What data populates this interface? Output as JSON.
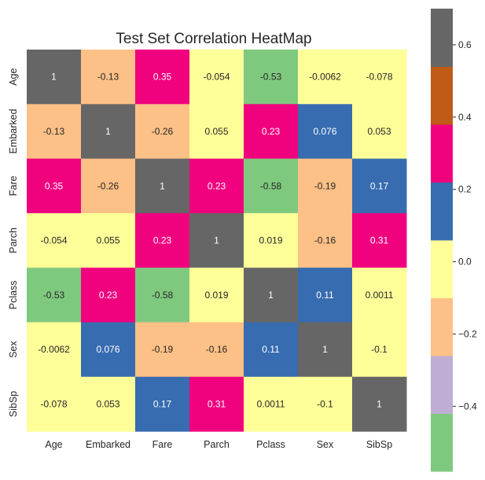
{
  "chart_data": {
    "type": "heatmap",
    "title": "Test Set Correlation HeatMap",
    "xlabel": "",
    "ylabel": "",
    "columns": [
      "Age",
      "Embarked",
      "Fare",
      "Parch",
      "Pclass",
      "Sex",
      "SibSp"
    ],
    "rows": [
      "Age",
      "Embarked",
      "Fare",
      "Parch",
      "Pclass",
      "Sex",
      "SibSp"
    ],
    "values": [
      [
        1,
        -0.13,
        0.35,
        -0.054,
        -0.53,
        -0.0062,
        -0.078
      ],
      [
        -0.13,
        1,
        -0.26,
        0.055,
        0.23,
        0.076,
        0.053
      ],
      [
        0.35,
        -0.26,
        1,
        0.23,
        -0.58,
        -0.19,
        0.17
      ],
      [
        -0.054,
        0.055,
        0.23,
        1,
        0.019,
        -0.16,
        0.31
      ],
      [
        -0.53,
        0.23,
        -0.58,
        0.019,
        1,
        0.11,
        0.0011
      ],
      [
        -0.0062,
        0.076,
        -0.19,
        -0.16,
        0.11,
        1,
        -0.1
      ],
      [
        -0.078,
        0.053,
        0.17,
        0.31,
        0.0011,
        -0.1,
        1
      ]
    ],
    "value_labels": [
      [
        "1",
        "-0.13",
        "0.35",
        "-0.054",
        "-0.53",
        "-0.0062",
        "-0.078"
      ],
      [
        "-0.13",
        "1",
        "-0.26",
        "0.055",
        "0.23",
        "0.076",
        "0.053"
      ],
      [
        "0.35",
        "-0.26",
        "1",
        "0.23",
        "-0.58",
        "-0.19",
        "0.17"
      ],
      [
        "-0.054",
        "0.055",
        "0.23",
        "1",
        "0.019",
        "-0.16",
        "0.31"
      ],
      [
        "-0.53",
        "0.23",
        "-0.58",
        "0.019",
        "1",
        "0.11",
        "0.0011"
      ],
      [
        "-0.0062",
        "0.076",
        "-0.19",
        "-0.16",
        "0.11",
        "1",
        "-0.1"
      ],
      [
        "-0.078",
        "0.053",
        "0.17",
        "0.31",
        "0.0011",
        "-0.1",
        "1"
      ]
    ],
    "colormap": "Accent",
    "vmin": -0.58,
    "vmax": 0.7,
    "color_bins": [
      {
        "from": -0.58,
        "to": -0.42,
        "color": "#7fc97f"
      },
      {
        "from": -0.42,
        "to": -0.26,
        "color": "#beaed4"
      },
      {
        "from": -0.26,
        "to": -0.1,
        "color": "#fdc086"
      },
      {
        "from": -0.1,
        "to": 0.06,
        "color": "#ffff99"
      },
      {
        "from": 0.06,
        "to": 0.22,
        "color": "#386cb0"
      },
      {
        "from": 0.22,
        "to": 0.38,
        "color": "#f0027f"
      },
      {
        "from": 0.38,
        "to": 0.54,
        "color": "#bf5b17"
      },
      {
        "from": 0.54,
        "to": 0.7,
        "color": "#666666"
      }
    ],
    "colorbar_ticks": [
      "0.6",
      "0.4",
      "0.2",
      "0.0",
      "−0.2",
      "−0.4"
    ],
    "colorbar_tick_values": [
      0.6,
      0.4,
      0.2,
      0.0,
      -0.2,
      -0.4
    ],
    "annotation_colors": {
      "on_dark": "#ffffff",
      "on_light": "#262626"
    },
    "grid": false
  }
}
